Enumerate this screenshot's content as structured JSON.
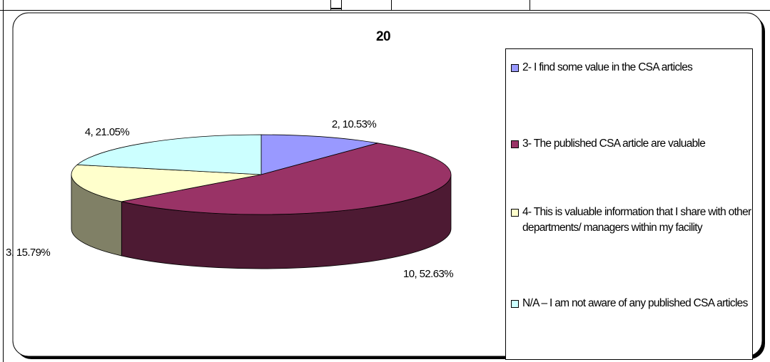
{
  "chart_data": {
    "type": "pie",
    "title": "20",
    "categories": [
      "2- I find some value in the CSA articles",
      "3- The published CSA article are valuable",
      "4- This is valuable information that I share with other departments/ managers within my facility",
      "N/A – I am not aware of any published CSA articles"
    ],
    "values": [
      2,
      10,
      3,
      4
    ],
    "value_labels": [
      "2, 10.53%",
      "10, 52.63%",
      "3, 15.79%",
      "4, 21.05%"
    ],
    "colors": [
      "#9999ff",
      "#993366",
      "#ffffcc",
      "#ccffff"
    ],
    "legend": "right"
  }
}
